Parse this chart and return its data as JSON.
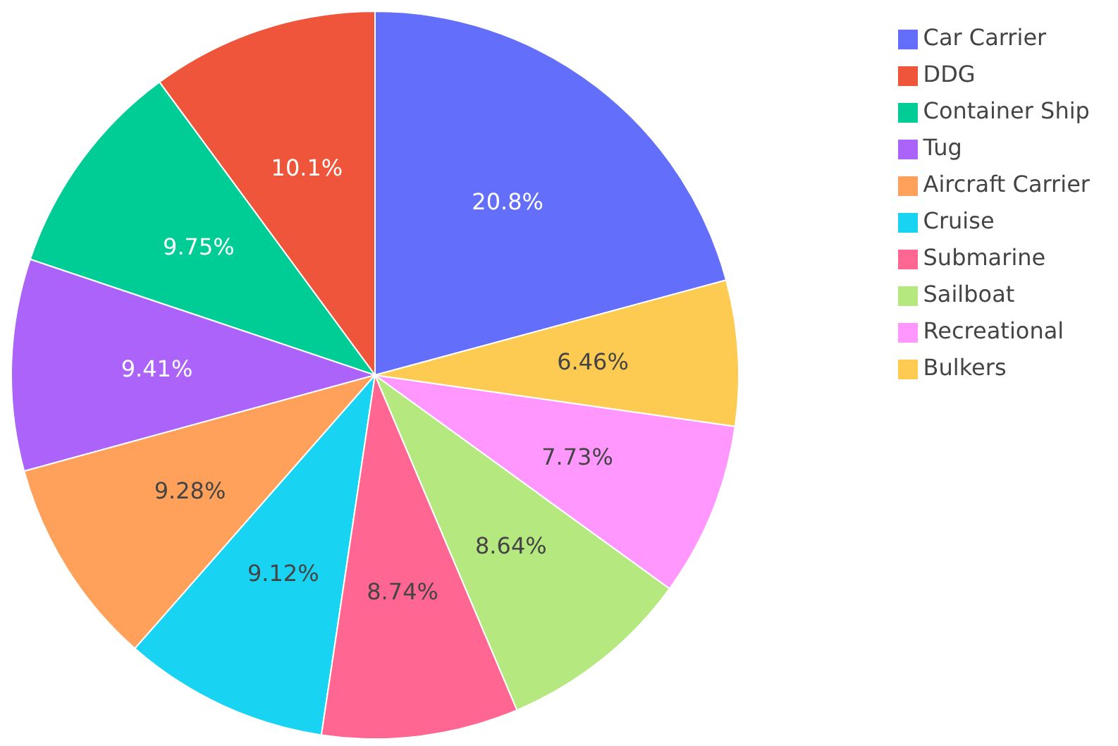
{
  "chart_data": {
    "type": "pie",
    "categories": [
      "Car Carrier",
      "DDG",
      "Container Ship",
      "Tug",
      "Aircraft Carrier",
      "Cruise",
      "Submarine",
      "Sailboat",
      "Recreational",
      "Bulkers"
    ],
    "values": [
      20.8,
      10.1,
      9.75,
      9.41,
      9.28,
      9.12,
      8.74,
      8.64,
      7.73,
      6.46
    ],
    "colors": [
      "#636efa",
      "#ef553b",
      "#00cc96",
      "#ab63fa",
      "#ffa15a",
      "#19d3f3",
      "#ff6692",
      "#b6e880",
      "#ff97ff",
      "#fecb52"
    ],
    "value_labels": [
      "20.8%",
      "10.1%",
      "9.75%",
      "9.41%",
      "9.28%",
      "9.12%",
      "8.74%",
      "8.64%",
      "7.73%",
      "6.46%"
    ],
    "legend": "top right"
  }
}
